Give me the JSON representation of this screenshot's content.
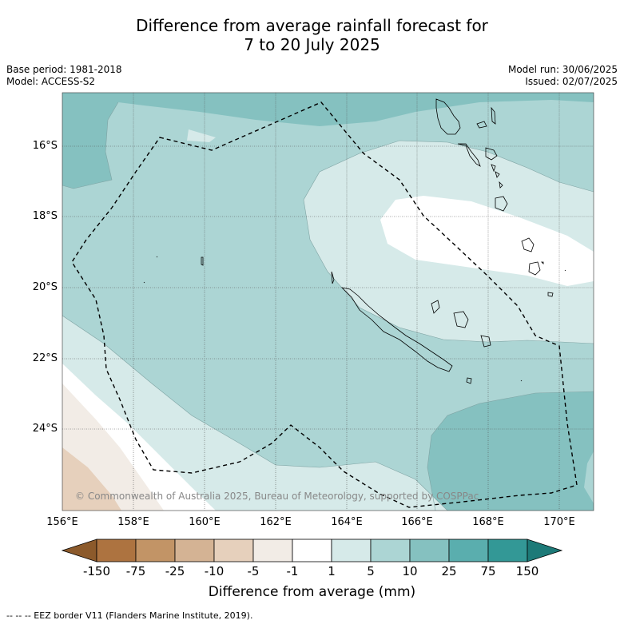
{
  "title_line1": "Difference from average rainfall forecast for",
  "title_line2": "7 to 20 July 2025",
  "base_period": "Base period: 1981-2018",
  "model": "Model: ACCESS-S2",
  "model_run": "Model run: 30/06/2025",
  "issued": "Issued: 02/07/2025",
  "map": {
    "lat_labels": [
      "16°S",
      "18°S",
      "20°S",
      "22°S",
      "24°S"
    ],
    "lon_labels": [
      "156°E",
      "158°E",
      "160°E",
      "162°E",
      "164°E",
      "166°E",
      "168°E",
      "170°E"
    ],
    "copyright": "© Commonwealth of Australia 2025, Bureau of Meteorology, supported by COSPPac"
  },
  "colorbar": {
    "ticks": [
      "-150",
      "-75",
      "-25",
      "-10",
      "-5",
      "-1",
      "1",
      "5",
      "10",
      "25",
      "75",
      "150"
    ],
    "label": "Difference from average (mm)",
    "colors": [
      "#8c5a2b",
      "#ad7340",
      "#c29466",
      "#d4b394",
      "#e6d0bc",
      "#f2ece6",
      "#ffffff",
      "#d6eae9",
      "#acd5d4",
      "#85c1c0",
      "#5aaeae",
      "#339896",
      "#1d7a78"
    ]
  },
  "footnote": "--  --  -- EEZ border V11 (Flanders Marine Institute, 2019)."
}
